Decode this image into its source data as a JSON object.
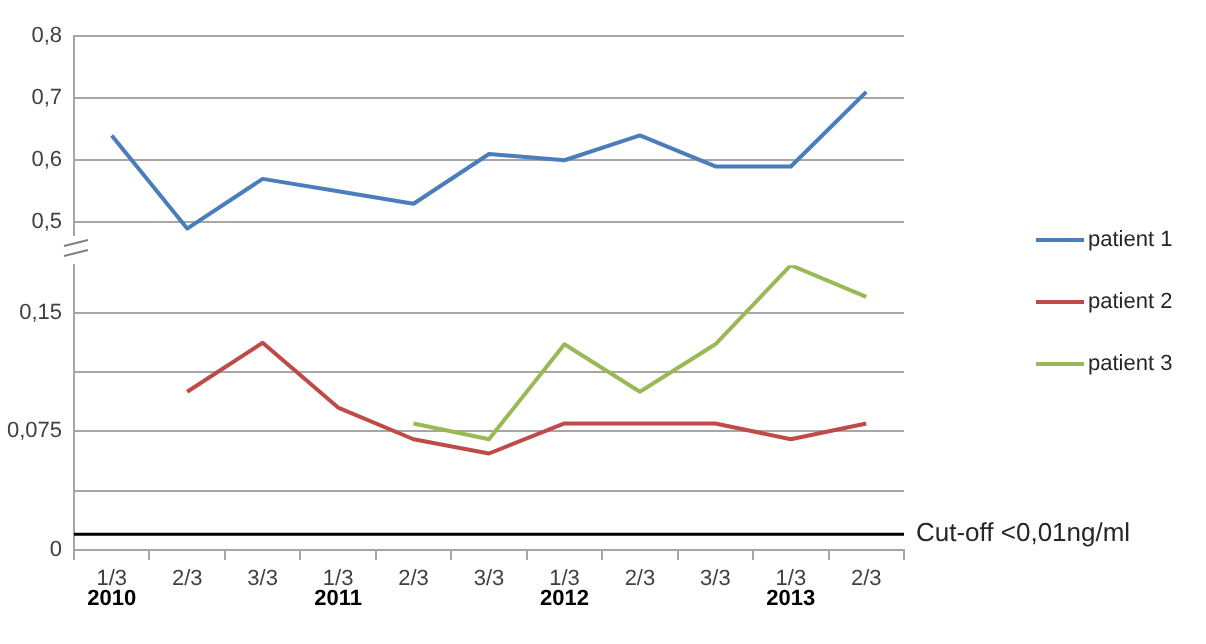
{
  "chart_data": [
    {
      "type": "line",
      "series": [
        {
          "name": "patient 1",
          "color": "#4a7ebb",
          "values": [
            0.64,
            0.49,
            0.57,
            0.55,
            0.53,
            0.61,
            0.6,
            0.64,
            0.59,
            0.59,
            0.71
          ]
        }
      ],
      "ylim": [
        0.48,
        0.8
      ],
      "yticks": [
        {
          "value": 0.5,
          "label": "0,5"
        },
        {
          "value": 0.6,
          "label": "0,6"
        },
        {
          "value": 0.7,
          "label": "0,7"
        },
        {
          "value": 0.8,
          "label": "0,8"
        }
      ],
      "grid": "y",
      "legend": "right",
      "marker": "none",
      "tick_labels": "y"
    },
    {
      "type": "line",
      "categories": [
        "1/3\n2010",
        "2/3",
        "3/3",
        "1/3\n2011",
        "2/3",
        "3/3",
        "1/3\n2012",
        "2/3",
        "3/3",
        "1/3\n2013",
        "2/3"
      ],
      "series": [
        {
          "name": "patient 2",
          "color": "#be4b48",
          "values": [
            null,
            0.1,
            0.131,
            0.09,
            0.07,
            0.061,
            0.08,
            0.08,
            0.08,
            0.07,
            0.08
          ]
        },
        {
          "name": "patient 3",
          "color": "#98b954",
          "values": [
            null,
            null,
            null,
            null,
            0.08,
            0.07,
            0.13,
            0.1,
            0.13,
            0.18,
            0.16
          ]
        }
      ],
      "ylim": [
        0,
        0.18
      ],
      "yticks": [
        0,
        {
          "value": 0.0375,
          "label": null
        },
        {
          "value": 0.075,
          "label": "0,075"
        },
        {
          "value": 0.1125,
          "label": null
        },
        {
          "value": 0.15,
          "label": "0,15"
        }
      ],
      "grid": "y",
      "legend": "right",
      "marker": "none",
      "ref_lines": [
        {
          "axis": "y",
          "value": 0.01,
          "label": "Cut-off <0,01ng/ml",
          "color": "#000000"
        }
      ]
    }
  ]
}
